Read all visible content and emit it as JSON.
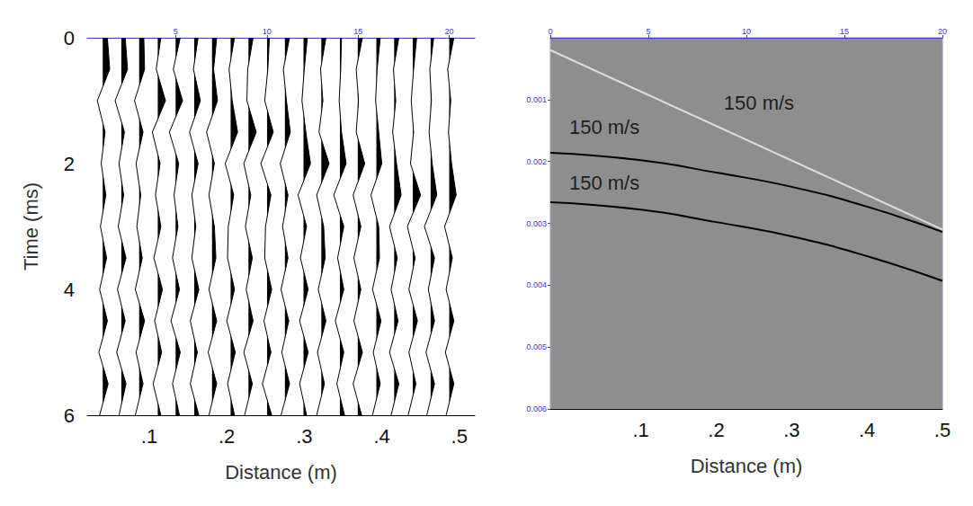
{
  "chart_data": [
    {
      "type": "wiggle",
      "xlabel": "Distance (m)",
      "ylabel": "Time (ms)",
      "xlim": [
        0.02,
        0.52
      ],
      "xticks": [
        {
          "value": 0.1,
          "label": ".1"
        },
        {
          "value": 0.2,
          "label": ".2"
        },
        {
          "value": 0.3,
          "label": ".3"
        },
        {
          "value": 0.4,
          "label": ".4"
        },
        {
          "value": 0.5,
          "label": ".5"
        }
      ],
      "ylim": [
        0,
        6
      ],
      "yticks": [
        0,
        2,
        4,
        6
      ],
      "x2lim": [
        0.15,
        21.4
      ],
      "x2ticks": [
        5,
        10,
        15,
        20
      ],
      "color": "#000000",
      "times": [
        0,
        0.5,
        1,
        1.5,
        2,
        2.5,
        3,
        3.5,
        4,
        4.5,
        5,
        5.5,
        6
      ],
      "traces": [
        {
          "x": 0.04,
          "values": [
            0.006,
            0.009,
            -0.007,
            0.003,
            -0.002,
            0.004,
            -0.003,
            0.005,
            -0.004,
            0.006,
            -0.005,
            0.007,
            -0.004
          ]
        },
        {
          "x": 0.064,
          "values": [
            0.005,
            0.008,
            -0.008,
            0.004,
            -0.003,
            0.003,
            -0.004,
            0.006,
            -0.005,
            0.005,
            -0.006,
            0.006,
            -0.003
          ]
        },
        {
          "x": 0.087,
          "values": [
            0.006,
            0.007,
            -0.006,
            0.005,
            -0.004,
            0.002,
            -0.003,
            0.004,
            -0.005,
            0.007,
            -0.004,
            0.005,
            -0.005
          ]
        },
        {
          "x": 0.111,
          "values": [
            0.004,
            -0.002,
            0.01,
            -0.007,
            0.003,
            -0.003,
            0.004,
            -0.005,
            0.006,
            -0.004,
            0.005,
            -0.006,
            0.004
          ]
        },
        {
          "x": 0.134,
          "values": [
            0.006,
            -0.003,
            0.009,
            -0.008,
            0.004,
            -0.002,
            0.003,
            -0.004,
            0.005,
            -0.006,
            0.006,
            -0.004,
            0.005
          ]
        },
        {
          "x": 0.158,
          "values": [
            0.005,
            -0.001,
            0.008,
            -0.006,
            0.005,
            -0.003,
            0.002,
            -0.003,
            0.006,
            -0.005,
            0.004,
            -0.005,
            0.006
          ]
        },
        {
          "x": 0.181,
          "values": [
            0.006,
            0.002,
            0.007,
            -0.007,
            0.003,
            -0.004,
            0.003,
            0.005,
            -0.004,
            0.006,
            -0.005,
            0.006,
            -0.004
          ]
        },
        {
          "x": 0.205,
          "values": [
            0.005,
            -0.002,
            0.002,
            0.009,
            -0.007,
            0.004,
            -0.003,
            -0.004,
            0.005,
            -0.005,
            0.006,
            -0.004,
            0.005
          ]
        },
        {
          "x": 0.228,
          "values": [
            0.006,
            -0.001,
            -0.002,
            0.01,
            -0.006,
            0.003,
            -0.004,
            0.005,
            -0.003,
            0.006,
            -0.006,
            0.005,
            -0.005
          ]
        },
        {
          "x": 0.252,
          "values": [
            0.003,
            0.001,
            -0.003,
            0.008,
            -0.008,
            0.005,
            -0.002,
            -0.003,
            0.006,
            -0.004,
            0.005,
            -0.006,
            0.006
          ]
        },
        {
          "x": 0.275,
          "values": [
            0.006,
            -0.002,
            0.002,
            0.007,
            -0.006,
            0.004,
            -0.003,
            0.004,
            -0.005,
            0.005,
            -0.004,
            0.006,
            -0.005
          ]
        },
        {
          "x": 0.299,
          "values": [
            0.005,
            0.001,
            -0.002,
            0.003,
            0.009,
            -0.007,
            0.004,
            -0.004,
            0.006,
            -0.005,
            0.006,
            -0.005,
            0.004
          ]
        },
        {
          "x": 0.322,
          "values": [
            0.006,
            -0.001,
            0.002,
            -0.003,
            0.01,
            -0.006,
            0.003,
            0.005,
            -0.004,
            0.006,
            -0.005,
            0.004,
            -0.006
          ]
        },
        {
          "x": 0.346,
          "values": [
            0.002,
            0.001,
            -0.001,
            0.002,
            0.008,
            -0.008,
            0.005,
            -0.003,
            0.005,
            -0.006,
            0.005,
            -0.004,
            0.006
          ]
        },
        {
          "x": 0.369,
          "values": [
            0.006,
            -0.002,
            0.001,
            -0.002,
            0.009,
            -0.006,
            0.004,
            -0.005,
            0.004,
            -0.005,
            0.006,
            -0.006,
            0.005
          ]
        },
        {
          "x": 0.393,
          "values": [
            0.005,
            0.001,
            -0.001,
            0.003,
            0.007,
            -0.007,
            0.003,
            0.004,
            -0.005,
            0.006,
            -0.004,
            0.005,
            -0.005
          ]
        },
        {
          "x": 0.416,
          "values": [
            0.006,
            -0.001,
            0.002,
            -0.002,
            0.003,
            0.009,
            -0.006,
            0.004,
            -0.004,
            0.005,
            -0.006,
            0.006,
            -0.004
          ]
        },
        {
          "x": 0.44,
          "values": [
            0.005,
            0.001,
            -0.002,
            0.001,
            -0.003,
            0.01,
            -0.007,
            0.003,
            -0.005,
            0.006,
            -0.005,
            0.004,
            -0.006
          ]
        },
        {
          "x": 0.463,
          "values": [
            0.004,
            -0.001,
            0.001,
            -0.002,
            0.002,
            0.008,
            -0.008,
            0.005,
            -0.003,
            0.005,
            -0.006,
            0.005,
            -0.005
          ]
        },
        {
          "x": 0.487,
          "values": [
            0.006,
            -0.002,
            0.002,
            -0.001,
            0.003,
            0.009,
            -0.006,
            0.004,
            -0.004,
            0.006,
            -0.005,
            0.006,
            -0.004
          ]
        }
      ]
    },
    {
      "type": "line",
      "xlabel": "Distance (m)",
      "xlim": [
        -0.02,
        0.5
      ],
      "xticks": [
        {
          "value": 0.1,
          "label": ".1"
        },
        {
          "value": 0.2,
          "label": ".2"
        },
        {
          "value": 0.3,
          "label": ".3"
        },
        {
          "value": 0.4,
          "label": ".4"
        },
        {
          "value": 0.5,
          "label": ".5"
        }
      ],
      "ylim": [
        0,
        0.006
      ],
      "yticks": [
        0.001,
        0.002,
        0.003,
        0.004,
        0.005,
        0.006
      ],
      "x2lim": [
        0,
        20
      ],
      "x2ticks": [
        0,
        5,
        10,
        15,
        20
      ],
      "series": [
        {
          "color": "#dcdcdc",
          "x": [
            -0.02,
            0.5
          ],
          "values": [
            0.0002,
            0.0031
          ]
        },
        {
          "color": "#000000",
          "x": [
            -0.02,
            0.1,
            0.2,
            0.3,
            0.4,
            0.5
          ],
          "values": [
            0.00186,
            0.00198,
            0.00218,
            0.00241,
            0.00273,
            0.00314
          ]
        },
        {
          "color": "#000000",
          "x": [
            -0.02,
            0.1,
            0.2,
            0.3,
            0.4,
            0.5
          ],
          "values": [
            0.00266,
            0.00278,
            0.00298,
            0.00321,
            0.00353,
            0.00393
          ]
        }
      ],
      "annotations": [
        {
          "text": "150 m/s",
          "x": 0.21,
          "y": 0.00106
        },
        {
          "text": "150 m/s",
          "x": 0.005,
          "y": 0.00145
        },
        {
          "text": "150 m/s",
          "x": 0.005,
          "y": 0.00234
        }
      ]
    }
  ]
}
